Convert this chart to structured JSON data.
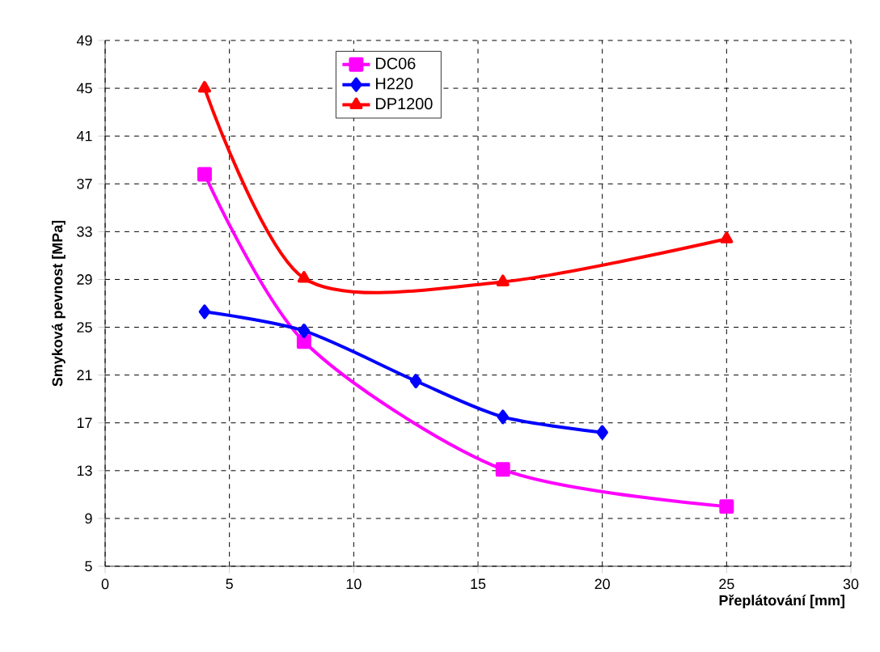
{
  "chart_data": {
    "type": "line",
    "xlabel": "Přeplátování [mm]",
    "ylabel": "Smyková pevnost [MPa]",
    "xlim": [
      0,
      30
    ],
    "xticks": [
      0,
      5,
      10,
      15,
      20,
      25,
      30
    ],
    "ylim": [
      5,
      49
    ],
    "yticks": [
      5,
      9,
      13,
      17,
      21,
      25,
      29,
      33,
      37,
      41,
      45,
      49
    ],
    "grid": true,
    "legend": "top",
    "line_style": "solid",
    "series": [
      {
        "name": "DC06",
        "color": "#ff00ff",
        "marker": "square",
        "x": [
          4,
          8,
          16,
          25
        ],
        "values": [
          37.8,
          23.8,
          13.1,
          10.0
        ]
      },
      {
        "name": "H220",
        "color": "#0000ff",
        "marker": "diamond",
        "x": [
          4,
          8,
          12.5,
          16,
          20
        ],
        "values": [
          26.3,
          24.7,
          20.5,
          17.5,
          16.2
        ]
      },
      {
        "name": "DP1200",
        "color": "#ff0000",
        "marker": "triangle",
        "x": [
          4,
          8,
          16,
          25
        ],
        "values": [
          45.0,
          29.1,
          28.8,
          32.4
        ]
      }
    ]
  }
}
